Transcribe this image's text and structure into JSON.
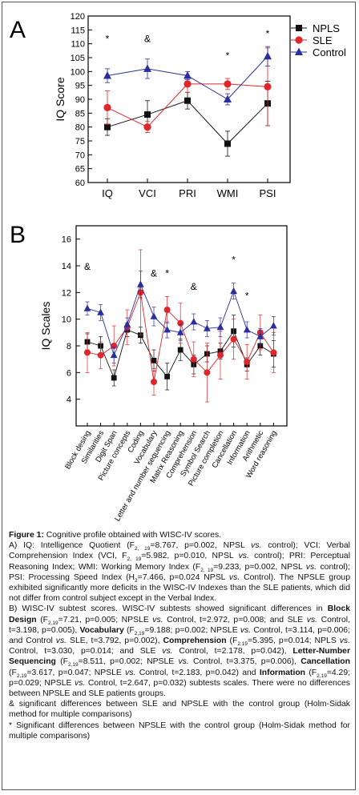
{
  "panel_labels": [
    "A",
    "B"
  ],
  "chart_data": [
    {
      "type": "line",
      "panel": "A",
      "title": "",
      "xlabel": "",
      "ylabel": "IQ Score",
      "categories": [
        "IQ",
        "VCI",
        "PRI",
        "WMI",
        "PSI"
      ],
      "ylim": [
        60,
        120
      ],
      "yticks": [
        60,
        65,
        70,
        75,
        80,
        85,
        90,
        95,
        100,
        105,
        110,
        115,
        120
      ],
      "grid": false,
      "legend_position": "top-right",
      "series": [
        {
          "name": "NPLS",
          "marker": "square",
          "color": "#111111",
          "values": [
            80,
            84.5,
            89.5,
            74,
            88.5
          ],
          "errors": [
            3,
            5,
            3,
            4.5,
            8
          ]
        },
        {
          "name": "SLE",
          "marker": "circle",
          "color": "#e0252b",
          "values": [
            87,
            80,
            95.5,
            95.5,
            94.5
          ],
          "errors": [
            6,
            2,
            3,
            2,
            14
          ]
        },
        {
          "name": "Control",
          "marker": "triangle",
          "color": "#2b2f9e",
          "values": [
            98.5,
            101,
            98.5,
            90,
            105.5
          ],
          "errors": [
            2.5,
            3.5,
            1.5,
            2,
            3.5
          ]
        }
      ],
      "annotations": [
        {
          "text": "*",
          "category": "IQ",
          "y": 112
        },
        {
          "text": "&",
          "category": "VCI",
          "y": 112
        },
        {
          "text": "*",
          "category": "WMI",
          "y": 106
        },
        {
          "text": "*",
          "category": "PSI",
          "y": 114
        }
      ]
    },
    {
      "type": "line",
      "panel": "B",
      "title": "",
      "xlabel": "",
      "ylabel": "IQ Scales",
      "categories": [
        "Block desing",
        "Similarities",
        "Digit Span",
        "Picture concepts",
        "Coding",
        "Vocabulary",
        "Letter and number sequencing",
        "Matrix Reasoning",
        "Comprehension",
        "Symbol Search",
        "Picture completion",
        "Cancellation",
        "Information",
        "Arithmetic",
        "Word reasoning"
      ],
      "ylim": [
        2,
        17
      ],
      "yticks": [
        4,
        6,
        8,
        10,
        12,
        14,
        16
      ],
      "grid": false,
      "series": [
        {
          "name": "NPLS",
          "color": "#111111",
          "values": [
            8.3,
            8.0,
            5.6,
            9.2,
            8.8,
            6.9,
            5.7,
            7.7,
            6.6,
            7.4,
            7.6,
            9.1,
            6.6,
            8.0,
            7.4
          ],
          "errors": [
            0.6,
            0.7,
            0.6,
            0.5,
            0.6,
            0.8,
            1.0,
            0.8,
            0.7,
            0.6,
            0.6,
            1.2,
            0.5,
            0.7,
            1.0
          ]
        },
        {
          "name": "SLE",
          "color": "#e0252b",
          "values": [
            7.5,
            7.3,
            8.0,
            9.4,
            12.0,
            5.3,
            10.7,
            9.7,
            7.0,
            6.0,
            7.3,
            8.5,
            6.8,
            9.0,
            7.5
          ],
          "errors": [
            1.5,
            1.0,
            1.5,
            1.3,
            3.2,
            1.0,
            1.0,
            1.5,
            1.3,
            2.2,
            1.8,
            1.5,
            1.3,
            1.3,
            1.5
          ]
        },
        {
          "name": "Control",
          "color": "#2b2f9e",
          "values": [
            10.8,
            10.5,
            7.3,
            9.6,
            12.6,
            10.2,
            9.2,
            9.0,
            9.8,
            9.3,
            9.4,
            12.1,
            9.2,
            8.7,
            9.5
          ],
          "errors": [
            0.5,
            0.6,
            0.6,
            0.5,
            1.0,
            0.7,
            0.6,
            0.6,
            0.6,
            0.6,
            0.7,
            0.6,
            0.6,
            0.6,
            0.7
          ]
        }
      ],
      "annotations": [
        {
          "text": "&",
          "category": "Block desing",
          "y": 14.0
        },
        {
          "text": "&",
          "category": "Vocabulary",
          "y": 13.5
        },
        {
          "text": "*",
          "category": "Letter and number sequencing",
          "y": 13.5
        },
        {
          "text": "&",
          "category": "Comprehension",
          "y": 12.5
        },
        {
          "text": "*",
          "category": "Cancellation",
          "y": 14.5
        },
        {
          "text": "*",
          "category": "Information",
          "y": 11.8
        }
      ]
    }
  ],
  "caption": {
    "title_bold": "Figure 1:",
    "title_rest": " Cognitive profile obtained with WISC-IV scores.",
    "a_text": "A) IQ: Intelligence Quotient (F2, 19=8.767, p=0.002, NPSL vs. control); VCI: Verbal Comprehension Index (VCI, F2, 19=5.982, p=0.010, NPSL vs. control); PRI: Perceptual Reasoning Index; WMI: Working Memory Index (F2, 19=9.233, p=0.002, NPSL vs. control); PSI: Processing Speed Index (H2=7.466, p=0.024 NPSL vs. Control). The NPSLE group exhibited significantly more deficits in the WISC-IV Indexes than the SLE patients, which did not differ from control subject except in the Verbal Index.",
    "b_text": "B) WISC-IV subtest scores. WISC-IV subtests showed significant differences in Block Design (F2,19=7.21, p=0.005; NPSLE vs. Control, t=2.972, p=0.008; and SLE vs. Control, t=3.198, p=0.005), Vocabulary (F2,19=9.188; p=0.002; NPSLE vs. Control, t=3.114, p=0.006; and Control vs. SLE, t=3.792, p=0.002), Comprehension (F2,19=5.395, p=0.014; NPLS vs. Control, t=3.030, p=0.014; and SLE vs. Control, t=2.178, p=0.042), Letter-Number Sequencing (F2,19=8.511, p=0.002; NPSLE vs. Control, t=3.375, p=0.006), Cancellation (F2,19=3.617, p=0.047; NPSLE vs. Control, t=2.183, p=0.042) and Information (F2,19=4.29; p=0.029; NPSLE vs. Control, t=2.647, p=0.032) subtests scales. There were no differences between NPSLE and SLE patients groups.",
    "amp_note": "& significant differences between SLE and NPSLE with the control group (Holm-Sidak method for multiple comparisons)",
    "star_note": "* Significant differences between NPSLE with the control group (Holm-Sidak method for multiple comparisons)"
  }
}
